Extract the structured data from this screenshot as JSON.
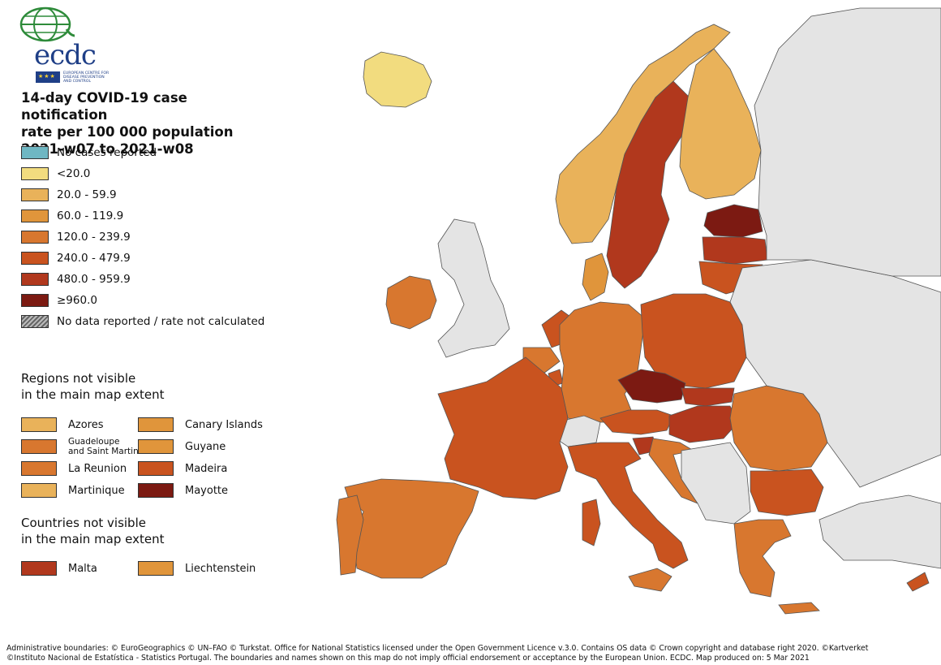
{
  "logo": {
    "text": "ecdc",
    "subtitle": [
      "EUROPEAN CENTRE FOR",
      "DISEASE PREVENTION",
      "AND CONTROL"
    ]
  },
  "title": [
    "14-day COVID-19 case notification",
    "rate per 100 000 population",
    "2021-w07 to 2021-w08"
  ],
  "legend": [
    {
      "label": "No cases reported",
      "color": "#6fb7c3"
    },
    {
      "label": "<20.0",
      "color": "#f2dc7f"
    },
    {
      "label": "20.0 - 59.9",
      "color": "#e9b25a"
    },
    {
      "label": "60.0 - 119.9",
      "color": "#e0953b"
    },
    {
      "label": "120.0 - 239.9",
      "color": "#d8772f"
    },
    {
      "label": "240.0 - 479.9",
      "color": "#c9531f"
    },
    {
      "label": "480.0 - 959.9",
      "color": "#b1381d"
    },
    {
      "label": "≥960.0",
      "color": "#7c1a12"
    },
    {
      "label": "No data reported / rate not calculated",
      "color": "hatch"
    }
  ],
  "regions_title": [
    "Regions not visible",
    "in the main map extent"
  ],
  "regions": [
    {
      "label": "Azores",
      "color": "#e9b25a"
    },
    {
      "label": "Canary Islands",
      "color": "#e0953b"
    },
    {
      "label": "Guadeloupe|and Saint Martin",
      "color": "#d8772f"
    },
    {
      "label": "Guyane",
      "color": "#e0953b"
    },
    {
      "label": "La Reunion",
      "color": "#d8772f"
    },
    {
      "label": "Madeira",
      "color": "#c9531f"
    },
    {
      "label": "Martinique",
      "color": "#e9b25a"
    },
    {
      "label": "Mayotte",
      "color": "#7c1a12"
    }
  ],
  "countries_title": [
    "Countries not visible",
    "in the main map extent"
  ],
  "countries": [
    {
      "label": "Malta",
      "color": "#b1381d"
    },
    {
      "label": "Liechtenstein",
      "color": "#e0953b"
    }
  ],
  "footer": [
    "Administrative boundaries: © EuroGeographics © UN–FAO © Turkstat. Office for National Statistics licensed under the Open Government Licence v.3.0. Contains OS data © Crown copyright and database right 2020. ©Kartverket",
    "©Instituto Nacional de Estatística - Statistics Portugal. The boundaries and names shown on this map do not imply official endorsement or acceptance by the European Union. ECDC. Map produced on: 5 Mar 2021"
  ],
  "map": {
    "sea_color": "#ffffff",
    "non_eu_color": "#e4e4e4",
    "border_color": "#555555",
    "countries": [
      {
        "name": "Iceland",
        "color": "#f2dc7f"
      },
      {
        "name": "Norway",
        "color": "#e9b25a"
      },
      {
        "name": "Sweden",
        "color": "#b1381d"
      },
      {
        "name": "Finland",
        "color": "#e9b25a"
      },
      {
        "name": "Estonia",
        "color": "#7c1a12"
      },
      {
        "name": "Latvia",
        "color": "#b1381d"
      },
      {
        "name": "Lithuania",
        "color": "#c9531f"
      },
      {
        "name": "Denmark",
        "color": "#e0953b"
      },
      {
        "name": "Ireland",
        "color": "#d8772f"
      },
      {
        "name": "United Kingdom",
        "color": "#e4e4e4"
      },
      {
        "name": "Netherlands",
        "color": "#c9531f"
      },
      {
        "name": "Belgium",
        "color": "#d8772f"
      },
      {
        "name": "Luxembourg",
        "color": "#c9531f"
      },
      {
        "name": "Germany",
        "color": "#d8772f"
      },
      {
        "name": "Poland",
        "color": "#c9531f"
      },
      {
        "name": "Czechia",
        "color": "#7c1a12"
      },
      {
        "name": "Slovakia",
        "color": "#b1381d"
      },
      {
        "name": "Austria",
        "color": "#c9531f"
      },
      {
        "name": "Hungary",
        "color": "#b1381d"
      },
      {
        "name": "Switzerland",
        "color": "#e4e4e4"
      },
      {
        "name": "France",
        "color": "#c9531f"
      },
      {
        "name": "Spain",
        "color": "#d8772f"
      },
      {
        "name": "Portugal",
        "color": "#d8772f"
      },
      {
        "name": "Italy",
        "color": "#c9531f"
      },
      {
        "name": "Slovenia",
        "color": "#b1381d"
      },
      {
        "name": "Croatia",
        "color": "#d8772f"
      },
      {
        "name": "Romania",
        "color": "#d8772f"
      },
      {
        "name": "Bulgaria",
        "color": "#c9531f"
      },
      {
        "name": "Greece",
        "color": "#d8772f"
      },
      {
        "name": "Cyprus",
        "color": "#c9531f"
      }
    ]
  }
}
